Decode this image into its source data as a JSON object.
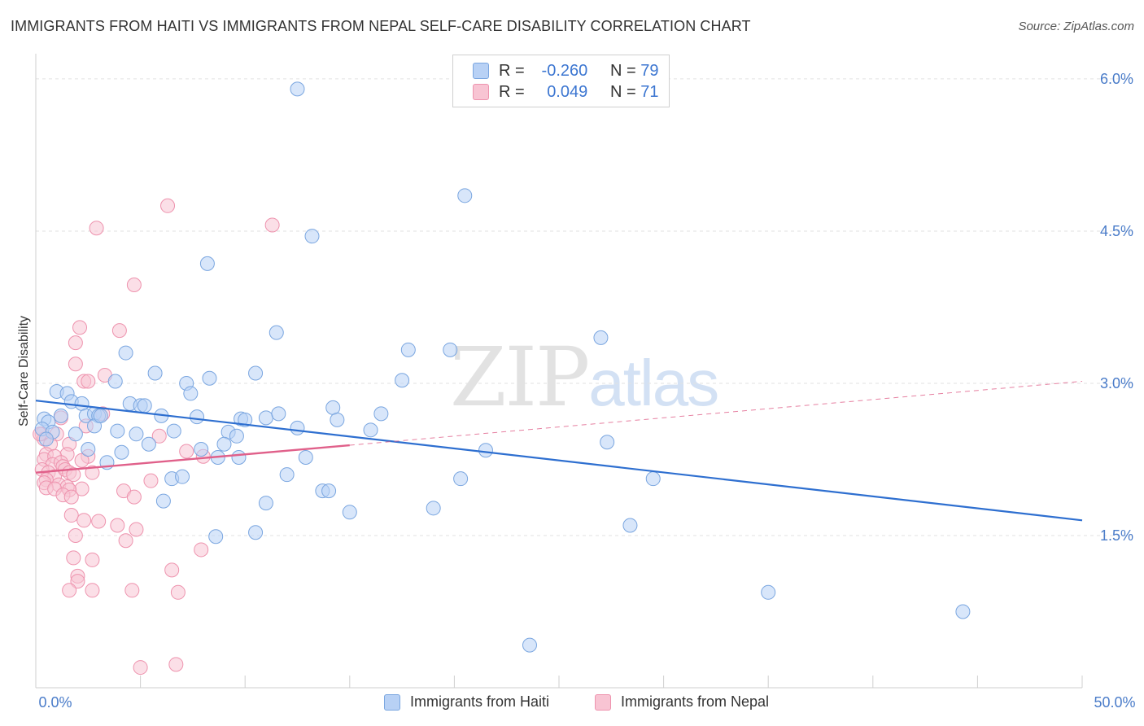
{
  "header": {
    "title": "IMMIGRANTS FROM HAITI VS IMMIGRANTS FROM NEPAL SELF-CARE DISABILITY CORRELATION CHART",
    "source": "Source: ZipAtlas.com"
  },
  "watermark": {
    "zip": "ZIP",
    "atlas": "atlas"
  },
  "legend": {
    "rows": [
      {
        "r_label": "R =",
        "r_value": "-0.260",
        "n_label": "N =",
        "n_value": "79"
      },
      {
        "r_label": "R =",
        "r_value": "0.049",
        "n_label": "N =",
        "n_value": "71"
      }
    ]
  },
  "chart_data": {
    "type": "scatter",
    "title": "IMMIGRANTS FROM HAITI VS IMMIGRANTS FROM NEPAL SELF-CARE DISABILITY CORRELATION CHART",
    "xlabel": "",
    "ylabel": "Self-Care Disability",
    "xlim": [
      0,
      50
    ],
    "ylim": [
      0,
      6.2
    ],
    "x_tick_labels": {
      "left": "0.0%",
      "right": "50.0%"
    },
    "y_ticks": [
      {
        "value": 1.5,
        "label": "1.5%"
      },
      {
        "value": 3.0,
        "label": "3.0%"
      },
      {
        "value": 4.5,
        "label": "4.5%"
      },
      {
        "value": 6.0,
        "label": "6.0%"
      }
    ],
    "grid": true,
    "legend_position": "top-center",
    "colors": {
      "haiti_fill": "#b8d1f5",
      "haiti_stroke": "#7aa6e0",
      "haiti_line": "#2e6fd0",
      "nepal_fill": "#f8c4d3",
      "nepal_stroke": "#ee93ae",
      "nepal_line": "#e0608a",
      "tick_text": "#4a7cc9"
    },
    "series": [
      {
        "name": "Immigrants from Haiti",
        "r": -0.26,
        "n": 79,
        "trend": {
          "x": [
            0,
            50
          ],
          "y": [
            2.83,
            1.65
          ]
        },
        "points": [
          [
            12.5,
            5.9
          ],
          [
            20.5,
            4.85
          ],
          [
            13.2,
            4.45
          ],
          [
            8.2,
            4.18
          ],
          [
            11.5,
            3.5
          ],
          [
            17.8,
            3.33
          ],
          [
            19.8,
            3.33
          ],
          [
            27.0,
            3.45
          ],
          [
            4.3,
            3.3
          ],
          [
            5.7,
            3.1
          ],
          [
            8.3,
            3.05
          ],
          [
            10.5,
            3.1
          ],
          [
            3.8,
            3.02
          ],
          [
            7.2,
            3.0
          ],
          [
            17.5,
            3.03
          ],
          [
            1.0,
            2.92
          ],
          [
            1.5,
            2.9
          ],
          [
            1.7,
            2.82
          ],
          [
            2.2,
            2.8
          ],
          [
            4.5,
            2.8
          ],
          [
            5.0,
            2.78
          ],
          [
            5.2,
            2.78
          ],
          [
            14.2,
            2.76
          ],
          [
            16.5,
            2.7
          ],
          [
            7.4,
            2.9
          ],
          [
            0.4,
            2.65
          ],
          [
            0.6,
            2.62
          ],
          [
            1.2,
            2.68
          ],
          [
            2.4,
            2.68
          ],
          [
            2.8,
            2.7
          ],
          [
            3.0,
            2.68
          ],
          [
            6.0,
            2.68
          ],
          [
            7.7,
            2.67
          ],
          [
            9.8,
            2.65
          ],
          [
            10.0,
            2.64
          ],
          [
            11.0,
            2.66
          ],
          [
            11.6,
            2.7
          ],
          [
            14.4,
            2.64
          ],
          [
            0.3,
            2.55
          ],
          [
            0.8,
            2.52
          ],
          [
            1.9,
            2.5
          ],
          [
            2.8,
            2.58
          ],
          [
            3.9,
            2.53
          ],
          [
            4.8,
            2.5
          ],
          [
            6.6,
            2.53
          ],
          [
            9.2,
            2.52
          ],
          [
            12.5,
            2.56
          ],
          [
            16.0,
            2.54
          ],
          [
            0.5,
            2.45
          ],
          [
            4.1,
            2.32
          ],
          [
            5.4,
            2.4
          ],
          [
            7.9,
            2.35
          ],
          [
            9.0,
            2.4
          ],
          [
            9.6,
            2.48
          ],
          [
            2.5,
            2.35
          ],
          [
            8.7,
            2.27
          ],
          [
            9.7,
            2.27
          ],
          [
            12.9,
            2.27
          ],
          [
            21.5,
            2.34
          ],
          [
            27.3,
            2.42
          ],
          [
            3.4,
            2.22
          ],
          [
            6.5,
            2.06
          ],
          [
            7.0,
            2.08
          ],
          [
            12.0,
            2.1
          ],
          [
            20.3,
            2.06
          ],
          [
            29.5,
            2.06
          ],
          [
            13.7,
            1.94
          ],
          [
            14.0,
            1.94
          ],
          [
            6.1,
            1.84
          ],
          [
            11.0,
            1.82
          ],
          [
            15.0,
            1.73
          ],
          [
            19.0,
            1.77
          ],
          [
            28.4,
            1.6
          ],
          [
            8.6,
            1.49
          ],
          [
            10.5,
            1.53
          ],
          [
            35.0,
            0.94
          ],
          [
            44.3,
            0.75
          ],
          [
            23.6,
            0.42
          ],
          [
            3.1,
            2.68
          ]
        ]
      },
      {
        "name": "Immigrants from Nepal",
        "r": 0.049,
        "n": 71,
        "trend": {
          "x": [
            0,
            15
          ],
          "y": [
            2.12,
            2.39
          ]
        },
        "points": [
          [
            6.3,
            4.75
          ],
          [
            2.9,
            4.53
          ],
          [
            11.3,
            4.56
          ],
          [
            4.7,
            3.97
          ],
          [
            2.1,
            3.55
          ],
          [
            4.0,
            3.52
          ],
          [
            1.9,
            3.4
          ],
          [
            1.9,
            3.19
          ],
          [
            3.3,
            3.08
          ],
          [
            2.3,
            3.02
          ],
          [
            2.5,
            3.02
          ],
          [
            3.2,
            2.7
          ],
          [
            1.2,
            2.66
          ],
          [
            2.4,
            2.58
          ],
          [
            5.9,
            2.48
          ],
          [
            0.3,
            2.5
          ],
          [
            1.0,
            2.5
          ],
          [
            0.4,
            2.45
          ],
          [
            0.7,
            2.4
          ],
          [
            1.6,
            2.4
          ],
          [
            7.2,
            2.33
          ],
          [
            0.5,
            2.3
          ],
          [
            1.5,
            2.3
          ],
          [
            2.5,
            2.28
          ],
          [
            0.4,
            2.25
          ],
          [
            0.9,
            2.28
          ],
          [
            0.8,
            2.2
          ],
          [
            1.2,
            2.22
          ],
          [
            2.2,
            2.24
          ],
          [
            8.0,
            2.28
          ],
          [
            0.3,
            2.15
          ],
          [
            0.6,
            2.12
          ],
          [
            0.9,
            2.08
          ],
          [
            1.3,
            2.18
          ],
          [
            1.4,
            2.15
          ],
          [
            1.6,
            2.12
          ],
          [
            0.5,
            2.05
          ],
          [
            1.8,
            2.1
          ],
          [
            2.7,
            2.12
          ],
          [
            0.4,
            2.02
          ],
          [
            1.1,
            2.0
          ],
          [
            1.5,
            1.98
          ],
          [
            2.2,
            1.96
          ],
          [
            5.5,
            2.04
          ],
          [
            0.5,
            1.97
          ],
          [
            0.9,
            1.96
          ],
          [
            1.6,
            1.95
          ],
          [
            4.2,
            1.94
          ],
          [
            1.3,
            1.9
          ],
          [
            1.7,
            1.88
          ],
          [
            4.7,
            1.88
          ],
          [
            1.7,
            1.7
          ],
          [
            2.3,
            1.65
          ],
          [
            3.0,
            1.64
          ],
          [
            3.9,
            1.6
          ],
          [
            4.8,
            1.56
          ],
          [
            1.9,
            1.5
          ],
          [
            4.3,
            1.45
          ],
          [
            7.9,
            1.36
          ],
          [
            1.8,
            1.28
          ],
          [
            2.7,
            1.26
          ],
          [
            6.5,
            1.16
          ],
          [
            2.0,
            1.1
          ],
          [
            2.0,
            1.05
          ],
          [
            1.6,
            0.96
          ],
          [
            2.7,
            0.96
          ],
          [
            4.6,
            0.96
          ],
          [
            6.8,
            0.94
          ],
          [
            5.0,
            0.2
          ],
          [
            6.7,
            0.23
          ],
          [
            0.2,
            2.5
          ]
        ]
      }
    ]
  }
}
